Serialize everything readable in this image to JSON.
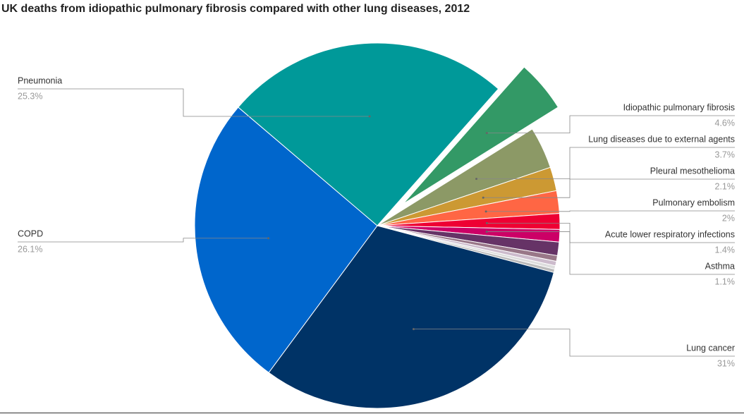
{
  "chart_data": {
    "type": "pie",
    "title": "UK deaths from idiopathic pulmonary fibrosis compared with other lung diseases, 2012",
    "categories": [
      "Idiopathic pulmonary fibrosis",
      "Lung diseases due to external agents",
      "Pleural mesothelioma",
      "Pulmonary embolism",
      "Acute lower respiratory infections",
      "Asthma",
      null,
      null,
      null,
      null,
      null,
      "Lung cancer",
      "COPD",
      "Pneumonia"
    ],
    "values": [
      4.6,
      3.7,
      2.1,
      2,
      1.4,
      1.1,
      1.2,
      0.5,
      0.4,
      0.3,
      0.3,
      31,
      26.1,
      25.3
    ],
    "value_labels": [
      "4.6%",
      "3.7%",
      "2.1%",
      "2%",
      "1.4%",
      "1.1%",
      null,
      null,
      null,
      null,
      null,
      "31%",
      "26.1%",
      "25.3%"
    ],
    "colors": [
      "#339966",
      "#8c9966",
      "#cc9933",
      "#ff6644",
      "#ee0033",
      "#cc0066",
      "#663366",
      "#997788",
      "#ccbbcc",
      "#dddddd",
      "#bbbbbb",
      "#003366",
      "#0066cc",
      "#009999"
    ],
    "exploded": [
      0
    ]
  }
}
